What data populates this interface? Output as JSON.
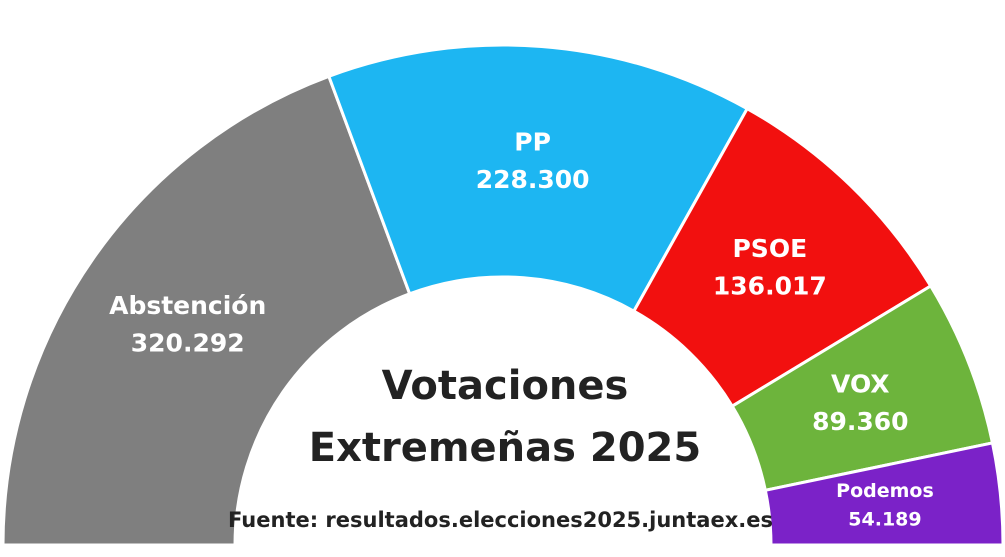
{
  "chart_data": {
    "type": "half-donut",
    "title": "Votaciones Extremeñas 2025",
    "source": "Fuente: resultados.elecciones2025.juntaex.es",
    "categories": [
      "Abstención",
      "PP",
      "PSOE",
      "VOX",
      "Podemos"
    ],
    "values": [
      320292,
      228300,
      136017,
      89360,
      54189
    ],
    "value_labels": [
      "320.292",
      "228.300",
      "136.017",
      "89.360",
      "54.189"
    ],
    "colors": [
      "#7f7f7f",
      "#1db6f2",
      "#f2100f",
      "#6db43c",
      "#7b22c8"
    ]
  }
}
